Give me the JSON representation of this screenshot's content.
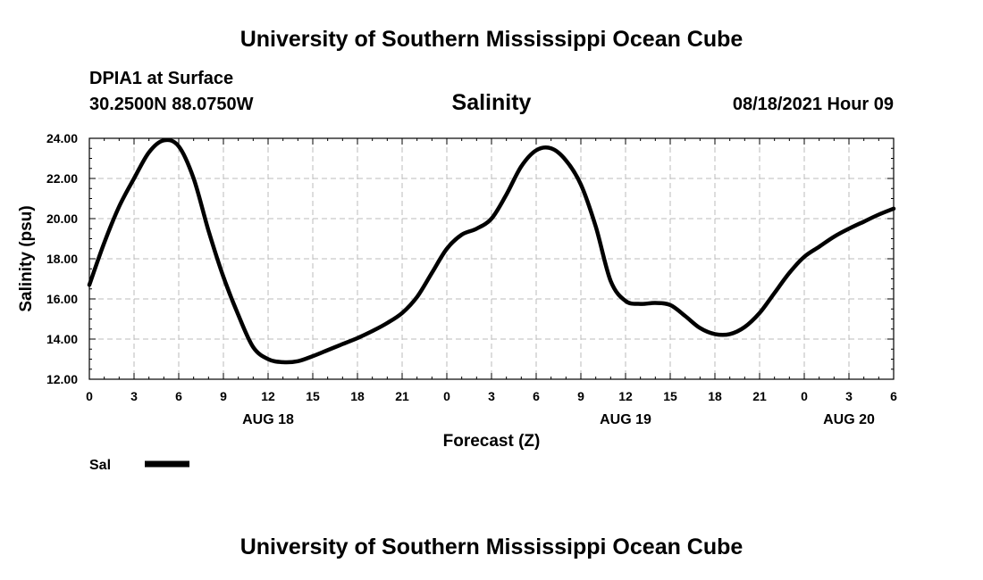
{
  "header": {
    "title": "University of Southern Mississippi Ocean Cube",
    "station": "DPIA1 at Surface",
    "coords": "30.2500N  88.0750W",
    "parameter": "Salinity",
    "timestamp": "08/18/2021 Hour 09"
  },
  "footer": {
    "title": "University of Southern Mississippi Ocean Cube"
  },
  "colors": {
    "line": "#000000",
    "grid": "#bbbbbb"
  },
  "chart_data": {
    "type": "line",
    "title": "Salinity",
    "xlabel": "Forecast (Z)",
    "ylabel": "Salinity (psu)",
    "xlim": [
      0,
      54
    ],
    "ylim": [
      12.0,
      24.0
    ],
    "x_ticks": [
      0,
      3,
      6,
      9,
      12,
      15,
      18,
      21,
      24,
      27,
      30,
      33,
      36,
      39,
      42,
      45,
      48,
      51,
      54
    ],
    "x_tick_labels": [
      "0",
      "3",
      "6",
      "9",
      "12",
      "15",
      "18",
      "21",
      "0",
      "3",
      "6",
      "9",
      "12",
      "15",
      "18",
      "21",
      "0",
      "3",
      "6"
    ],
    "date_labels": [
      {
        "x": 12,
        "text": "AUG 18"
      },
      {
        "x": 36,
        "text": "AUG 19"
      },
      {
        "x": 51,
        "text": "AUG 20"
      }
    ],
    "y_ticks": [
      12,
      14,
      16,
      18,
      20,
      22,
      24
    ],
    "y_tick_labels": [
      "12.00",
      "14.00",
      "16.00",
      "18.00",
      "20.00",
      "22.00",
      "24.00"
    ],
    "grid": true,
    "legend": {
      "position": "bottom-left",
      "entries": [
        "Sal"
      ]
    },
    "series": [
      {
        "name": "Sal",
        "x": [
          0,
          1,
          2,
          3,
          4,
          5,
          6,
          7,
          8,
          9,
          10,
          11,
          12,
          13,
          14,
          15,
          16,
          17,
          18,
          19,
          20,
          21,
          22,
          23,
          24,
          25,
          26,
          27,
          28,
          29,
          30,
          31,
          32,
          33,
          34,
          35,
          36,
          37,
          38,
          39,
          40,
          41,
          42,
          43,
          44,
          45,
          46,
          47,
          48,
          49,
          50,
          51,
          52,
          53,
          54
        ],
        "values": [
          16.7,
          18.8,
          20.6,
          22.0,
          23.3,
          23.9,
          23.6,
          22.0,
          19.4,
          17.1,
          15.2,
          13.6,
          13.0,
          12.85,
          12.9,
          13.15,
          13.45,
          13.75,
          14.05,
          14.4,
          14.8,
          15.3,
          16.1,
          17.3,
          18.5,
          19.2,
          19.5,
          20.0,
          21.2,
          22.6,
          23.4,
          23.5,
          22.9,
          21.7,
          19.6,
          16.9,
          15.9,
          15.75,
          15.8,
          15.7,
          15.15,
          14.55,
          14.25,
          14.25,
          14.6,
          15.3,
          16.3,
          17.3,
          18.1,
          18.6,
          19.1,
          19.5,
          19.85,
          20.2,
          20.5
        ]
      }
    ]
  }
}
